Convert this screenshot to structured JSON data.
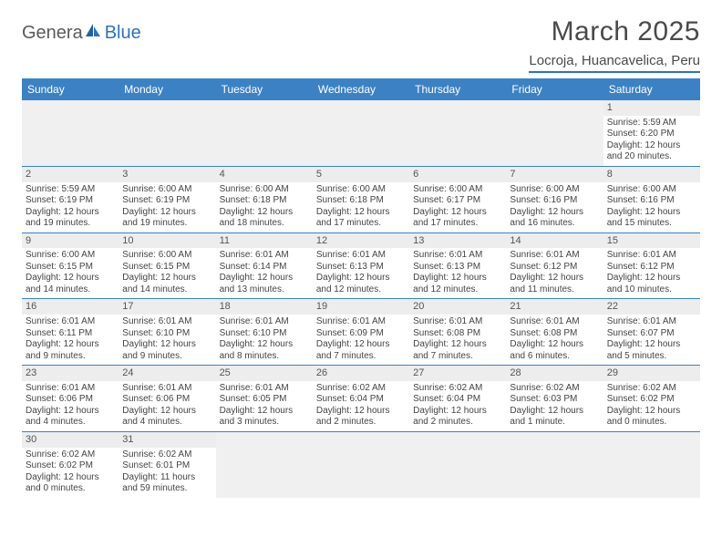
{
  "logo": {
    "text1": "Genera",
    "text2": "Blue"
  },
  "colors": {
    "header_bg": "#3b82c4",
    "header_text": "#ffffff",
    "accent": "#2b72c2",
    "daynum_bg": "#ededed",
    "blank_bg": "#f0f0f0",
    "text": "#444444",
    "title": "#4a4a4a"
  },
  "title": "March 2025",
  "location": "Locroja, Huancavelica, Peru",
  "weekdays": [
    "Sunday",
    "Monday",
    "Tuesday",
    "Wednesday",
    "Thursday",
    "Friday",
    "Saturday"
  ],
  "weeks": [
    [
      null,
      null,
      null,
      null,
      null,
      null,
      {
        "n": "1",
        "sunrise": "Sunrise: 5:59 AM",
        "sunset": "Sunset: 6:20 PM",
        "day1": "Daylight: 12 hours",
        "day2": "and 20 minutes."
      }
    ],
    [
      {
        "n": "2",
        "sunrise": "Sunrise: 5:59 AM",
        "sunset": "Sunset: 6:19 PM",
        "day1": "Daylight: 12 hours",
        "day2": "and 19 minutes."
      },
      {
        "n": "3",
        "sunrise": "Sunrise: 6:00 AM",
        "sunset": "Sunset: 6:19 PM",
        "day1": "Daylight: 12 hours",
        "day2": "and 19 minutes."
      },
      {
        "n": "4",
        "sunrise": "Sunrise: 6:00 AM",
        "sunset": "Sunset: 6:18 PM",
        "day1": "Daylight: 12 hours",
        "day2": "and 18 minutes."
      },
      {
        "n": "5",
        "sunrise": "Sunrise: 6:00 AM",
        "sunset": "Sunset: 6:18 PM",
        "day1": "Daylight: 12 hours",
        "day2": "and 17 minutes."
      },
      {
        "n": "6",
        "sunrise": "Sunrise: 6:00 AM",
        "sunset": "Sunset: 6:17 PM",
        "day1": "Daylight: 12 hours",
        "day2": "and 17 minutes."
      },
      {
        "n": "7",
        "sunrise": "Sunrise: 6:00 AM",
        "sunset": "Sunset: 6:16 PM",
        "day1": "Daylight: 12 hours",
        "day2": "and 16 minutes."
      },
      {
        "n": "8",
        "sunrise": "Sunrise: 6:00 AM",
        "sunset": "Sunset: 6:16 PM",
        "day1": "Daylight: 12 hours",
        "day2": "and 15 minutes."
      }
    ],
    [
      {
        "n": "9",
        "sunrise": "Sunrise: 6:00 AM",
        "sunset": "Sunset: 6:15 PM",
        "day1": "Daylight: 12 hours",
        "day2": "and 14 minutes."
      },
      {
        "n": "10",
        "sunrise": "Sunrise: 6:00 AM",
        "sunset": "Sunset: 6:15 PM",
        "day1": "Daylight: 12 hours",
        "day2": "and 14 minutes."
      },
      {
        "n": "11",
        "sunrise": "Sunrise: 6:01 AM",
        "sunset": "Sunset: 6:14 PM",
        "day1": "Daylight: 12 hours",
        "day2": "and 13 minutes."
      },
      {
        "n": "12",
        "sunrise": "Sunrise: 6:01 AM",
        "sunset": "Sunset: 6:13 PM",
        "day1": "Daylight: 12 hours",
        "day2": "and 12 minutes."
      },
      {
        "n": "13",
        "sunrise": "Sunrise: 6:01 AM",
        "sunset": "Sunset: 6:13 PM",
        "day1": "Daylight: 12 hours",
        "day2": "and 12 minutes."
      },
      {
        "n": "14",
        "sunrise": "Sunrise: 6:01 AM",
        "sunset": "Sunset: 6:12 PM",
        "day1": "Daylight: 12 hours",
        "day2": "and 11 minutes."
      },
      {
        "n": "15",
        "sunrise": "Sunrise: 6:01 AM",
        "sunset": "Sunset: 6:12 PM",
        "day1": "Daylight: 12 hours",
        "day2": "and 10 minutes."
      }
    ],
    [
      {
        "n": "16",
        "sunrise": "Sunrise: 6:01 AM",
        "sunset": "Sunset: 6:11 PM",
        "day1": "Daylight: 12 hours",
        "day2": "and 9 minutes."
      },
      {
        "n": "17",
        "sunrise": "Sunrise: 6:01 AM",
        "sunset": "Sunset: 6:10 PM",
        "day1": "Daylight: 12 hours",
        "day2": "and 9 minutes."
      },
      {
        "n": "18",
        "sunrise": "Sunrise: 6:01 AM",
        "sunset": "Sunset: 6:10 PM",
        "day1": "Daylight: 12 hours",
        "day2": "and 8 minutes."
      },
      {
        "n": "19",
        "sunrise": "Sunrise: 6:01 AM",
        "sunset": "Sunset: 6:09 PM",
        "day1": "Daylight: 12 hours",
        "day2": "and 7 minutes."
      },
      {
        "n": "20",
        "sunrise": "Sunrise: 6:01 AM",
        "sunset": "Sunset: 6:08 PM",
        "day1": "Daylight: 12 hours",
        "day2": "and 7 minutes."
      },
      {
        "n": "21",
        "sunrise": "Sunrise: 6:01 AM",
        "sunset": "Sunset: 6:08 PM",
        "day1": "Daylight: 12 hours",
        "day2": "and 6 minutes."
      },
      {
        "n": "22",
        "sunrise": "Sunrise: 6:01 AM",
        "sunset": "Sunset: 6:07 PM",
        "day1": "Daylight: 12 hours",
        "day2": "and 5 minutes."
      }
    ],
    [
      {
        "n": "23",
        "sunrise": "Sunrise: 6:01 AM",
        "sunset": "Sunset: 6:06 PM",
        "day1": "Daylight: 12 hours",
        "day2": "and 4 minutes."
      },
      {
        "n": "24",
        "sunrise": "Sunrise: 6:01 AM",
        "sunset": "Sunset: 6:06 PM",
        "day1": "Daylight: 12 hours",
        "day2": "and 4 minutes."
      },
      {
        "n": "25",
        "sunrise": "Sunrise: 6:01 AM",
        "sunset": "Sunset: 6:05 PM",
        "day1": "Daylight: 12 hours",
        "day2": "and 3 minutes."
      },
      {
        "n": "26",
        "sunrise": "Sunrise: 6:02 AM",
        "sunset": "Sunset: 6:04 PM",
        "day1": "Daylight: 12 hours",
        "day2": "and 2 minutes."
      },
      {
        "n": "27",
        "sunrise": "Sunrise: 6:02 AM",
        "sunset": "Sunset: 6:04 PM",
        "day1": "Daylight: 12 hours",
        "day2": "and 2 minutes."
      },
      {
        "n": "28",
        "sunrise": "Sunrise: 6:02 AM",
        "sunset": "Sunset: 6:03 PM",
        "day1": "Daylight: 12 hours",
        "day2": "and 1 minute."
      },
      {
        "n": "29",
        "sunrise": "Sunrise: 6:02 AM",
        "sunset": "Sunset: 6:02 PM",
        "day1": "Daylight: 12 hours",
        "day2": "and 0 minutes."
      }
    ],
    [
      {
        "n": "30",
        "sunrise": "Sunrise: 6:02 AM",
        "sunset": "Sunset: 6:02 PM",
        "day1": "Daylight: 12 hours",
        "day2": "and 0 minutes."
      },
      {
        "n": "31",
        "sunrise": "Sunrise: 6:02 AM",
        "sunset": "Sunset: 6:01 PM",
        "day1": "Daylight: 11 hours",
        "day2": "and 59 minutes."
      },
      null,
      null,
      null,
      null,
      null
    ]
  ]
}
